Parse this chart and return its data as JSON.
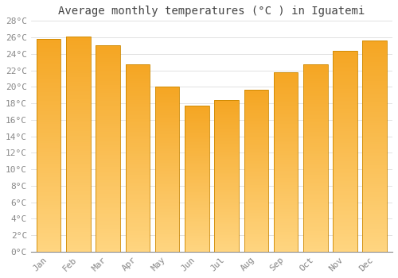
{
  "title": "Average monthly temperatures (°C ) in Iguatemi",
  "months": [
    "Jan",
    "Feb",
    "Mar",
    "Apr",
    "May",
    "Jun",
    "Jul",
    "Aug",
    "Sep",
    "Oct",
    "Nov",
    "Dec"
  ],
  "temperatures": [
    25.8,
    26.1,
    25.0,
    22.7,
    20.0,
    17.7,
    18.4,
    19.6,
    21.8,
    22.7,
    24.4,
    25.6
  ],
  "bar_color_top": "#F5A623",
  "bar_color_bottom": "#FFD580",
  "bar_edge_color": "#CC8800",
  "background_color": "#FFFFFF",
  "plot_bg_color": "#FFFFFF",
  "grid_color": "#DDDDDD",
  "ylim": [
    0,
    28
  ],
  "ytick_step": 2,
  "title_fontsize": 10,
  "tick_fontsize": 8,
  "tick_color": "#888888",
  "title_color": "#444444",
  "font_family": "monospace",
  "bar_width": 0.82
}
